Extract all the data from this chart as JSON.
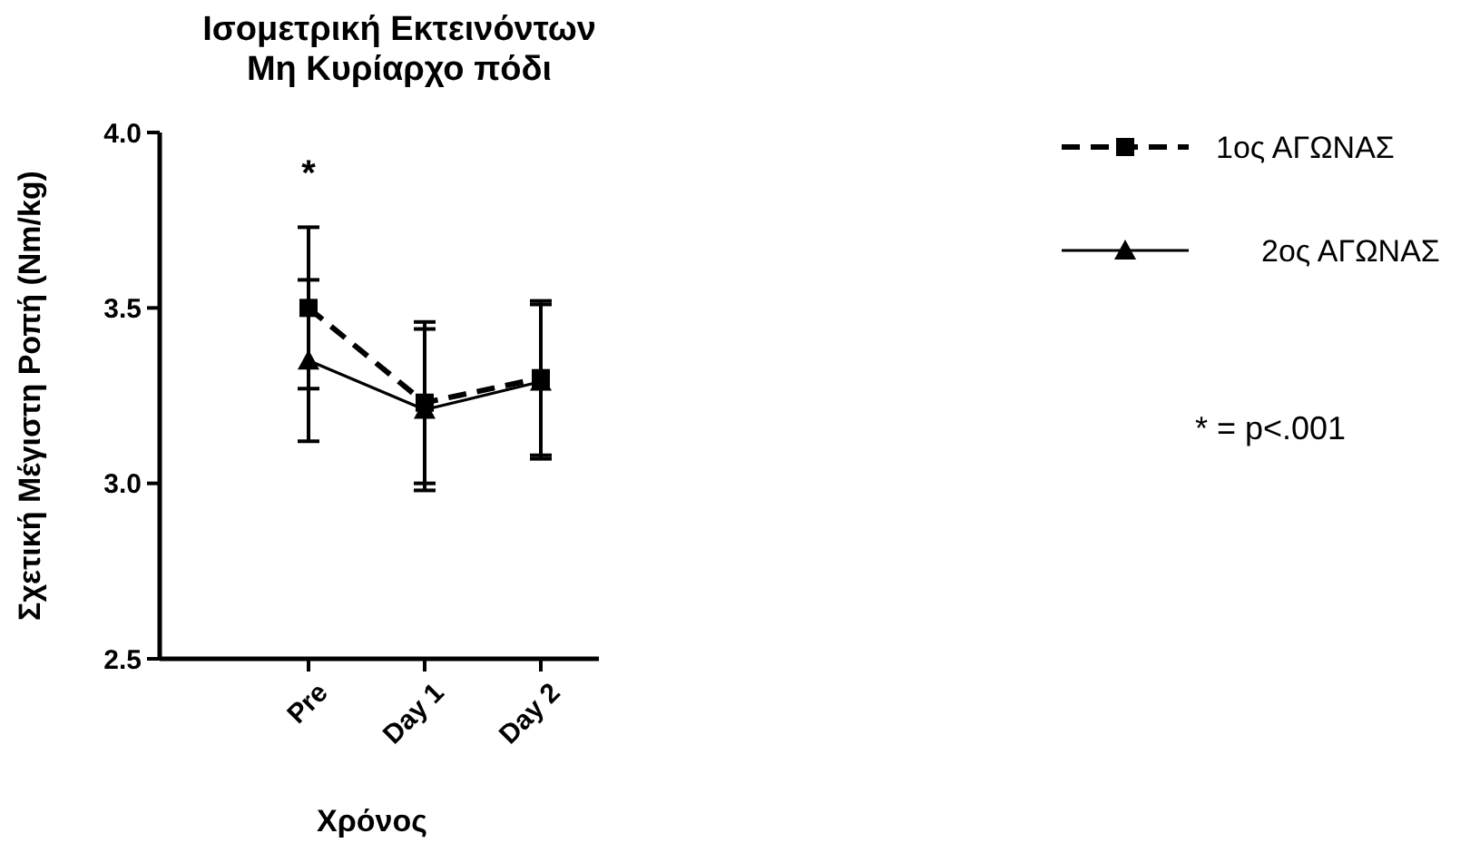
{
  "chart_data": {
    "type": "line",
    "title": "Ισομετρική Εκτεινόντων\nΜη Κυρίαρχο πόδι",
    "xlabel": "Χρόνος",
    "ylabel": "Σχετική Μέγιστη Ροπή  (Nm/kg)",
    "categories": [
      "Pre",
      "Day 1",
      "Day 2"
    ],
    "series": [
      {
        "name": "1ος ΑΓΩΝΑΣ",
        "color": "#000000",
        "values": [
          3.5,
          3.23,
          3.3
        ],
        "errors": [
          0.23,
          0.23,
          0.22
        ],
        "marker": "square",
        "line_style": "dashed"
      },
      {
        "name": "2ος ΑΓΩΝΑΣ",
        "color": "#000000",
        "values": [
          3.35,
          3.21,
          3.29
        ],
        "errors": [
          0.23,
          0.23,
          0.22
        ],
        "marker": "triangle",
        "line_style": "solid"
      }
    ],
    "ylim": [
      2.5,
      4.0
    ],
    "yticks": [
      {
        "value": 2.5,
        "label": "2.5"
      },
      {
        "value": 3,
        "label": "3.0"
      },
      {
        "value": 3.5,
        "label": "3.5"
      },
      {
        "value": 4,
        "label": "4.0"
      }
    ],
    "grid": false,
    "legend": "right",
    "annotations": [
      "*",
      "* = p<.001"
    ]
  }
}
